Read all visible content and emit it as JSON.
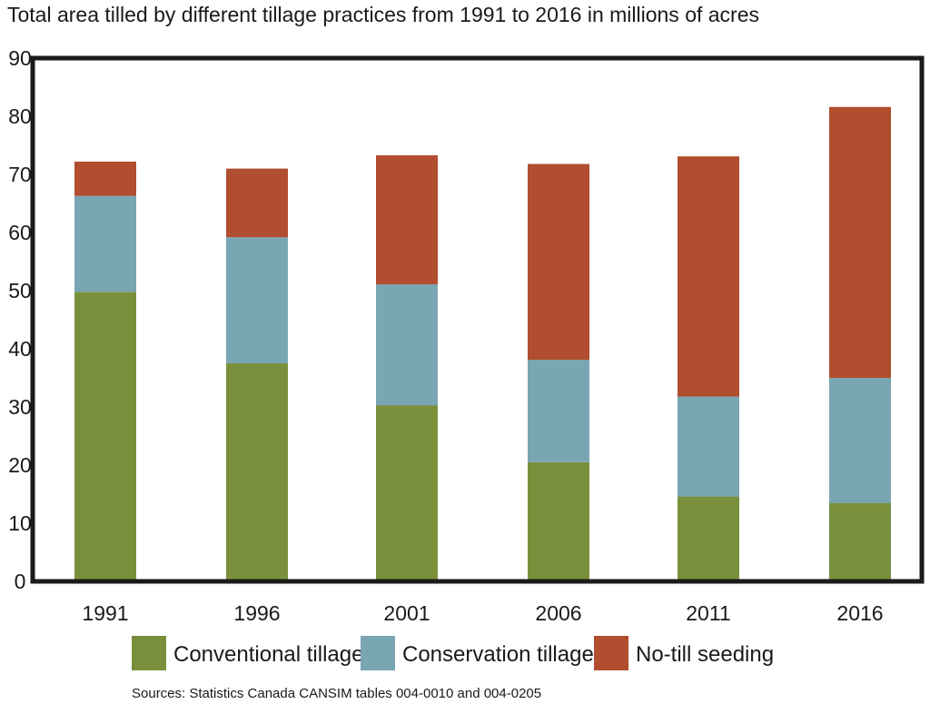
{
  "chart_data": {
    "type": "bar",
    "stacked": true,
    "title": "Total area tilled by different tillage practices from 1991 to 2016 in millions of acres",
    "categories": [
      "1991",
      "1996",
      "2001",
      "2006",
      "2011",
      "2016"
    ],
    "series": [
      {
        "name": "Conventional tillage",
        "color": "#7a8f3c",
        "values": [
          49.8,
          37.5,
          30.3,
          20.5,
          14.6,
          13.5
        ]
      },
      {
        "name": "Conservation tillage",
        "color": "#7aa6b4",
        "values": [
          16.5,
          21.7,
          20.8,
          17.6,
          17.2,
          21.5
        ]
      },
      {
        "name": "No-till seeding",
        "color": "#b04e2f",
        "values": [
          5.9,
          11.8,
          22.2,
          33.7,
          41.3,
          46.6
        ]
      }
    ],
    "ylim": [
      0,
      90
    ],
    "yticks": [
      "0",
      "10",
      "20",
      "30",
      "40",
      "50",
      "60",
      "70",
      "80",
      "90"
    ],
    "grid": false,
    "legend": "bottom",
    "source": "Sources: Statistics Canada CANSIM tables 004-0010 and 004-0205"
  }
}
